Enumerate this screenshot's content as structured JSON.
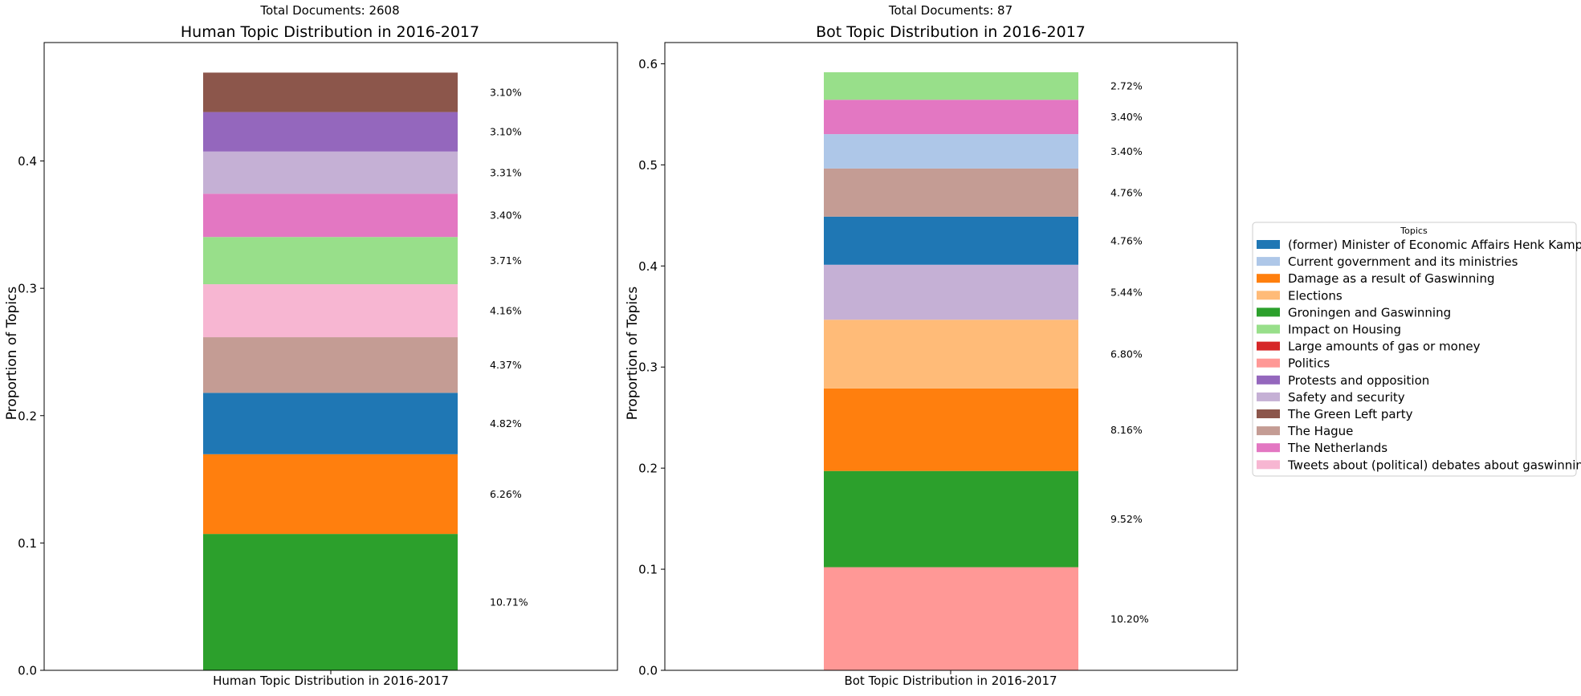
{
  "chart_data": [
    {
      "type": "bar",
      "stacked": true,
      "subtitle": "Total Documents: 2608",
      "title": "Human Topic Distribution in 2016-2017",
      "xlabel": "",
      "ylabel": "Proportion of Topics",
      "categories": [
        "Human Topic Distribution in 2016-2017"
      ],
      "ylim": [
        0,
        0.493
      ],
      "yticks": [
        "0.0",
        "0.1",
        "0.2",
        "0.3",
        "0.4"
      ],
      "yticks_values": [
        0,
        0.1,
        0.2,
        0.3,
        0.4
      ],
      "series": [
        {
          "name": "Groningen and Gaswinning",
          "value": 0.1071,
          "label": "10.71%"
        },
        {
          "name": "Damage as a result of Gaswinning",
          "value": 0.0626,
          "label": "6.26%"
        },
        {
          "name": "(former) Minister of Economic Affairs Henk Kamp",
          "value": 0.0482,
          "label": "4.82%"
        },
        {
          "name": "The Hague",
          "value": 0.0437,
          "label": "4.37%"
        },
        {
          "name": "Tweets about (political) debates about gaswinning",
          "value": 0.0416,
          "label": "4.16%"
        },
        {
          "name": "Impact on Housing",
          "value": 0.0371,
          "label": "3.71%"
        },
        {
          "name": "The Netherlands",
          "value": 0.034,
          "label": "3.40%"
        },
        {
          "name": "Safety and security",
          "value": 0.0331,
          "label": "3.31%"
        },
        {
          "name": "Protests and opposition",
          "value": 0.031,
          "label": "3.10%"
        },
        {
          "name": "The Green Left party",
          "value": 0.031,
          "label": "3.10%"
        }
      ]
    },
    {
      "type": "bar",
      "stacked": true,
      "subtitle": "Total Documents: 87",
      "title": "Bot Topic Distribution in 2016-2017",
      "xlabel": "",
      "ylabel": "Proportion of Topics",
      "categories": [
        "Bot Topic Distribution in 2016-2017"
      ],
      "ylim": [
        0,
        0.621
      ],
      "yticks": [
        "0.0",
        "0.1",
        "0.2",
        "0.3",
        "0.4",
        "0.5",
        "0.6"
      ],
      "yticks_values": [
        0,
        0.1,
        0.2,
        0.3,
        0.4,
        0.5,
        0.6
      ],
      "series": [
        {
          "name": "Politics",
          "value": 0.102,
          "label": "10.20%"
        },
        {
          "name": "Groningen and Gaswinning",
          "value": 0.0952,
          "label": "9.52%"
        },
        {
          "name": "Damage as a result of Gaswinning",
          "value": 0.0816,
          "label": "8.16%"
        },
        {
          "name": "Elections",
          "value": 0.068,
          "label": "6.80%"
        },
        {
          "name": "Safety and security",
          "value": 0.0544,
          "label": "5.44%"
        },
        {
          "name": "(former) Minister of Economic Affairs Henk Kamp",
          "value": 0.0476,
          "label": "4.76%"
        },
        {
          "name": "The Hague",
          "value": 0.0476,
          "label": "4.76%"
        },
        {
          "name": "Current government and its ministries",
          "value": 0.034,
          "label": "3.40%"
        },
        {
          "name": "The Netherlands",
          "value": 0.034,
          "label": "3.40%"
        },
        {
          "name": "Impact on Housing",
          "value": 0.0272,
          "label": "2.72%"
        }
      ]
    }
  ],
  "legend": {
    "title": "Topics",
    "placement": "right",
    "items": [
      {
        "name": "(former) Minister of Economic Affairs Henk Kamp",
        "color": "#1f77b4"
      },
      {
        "name": "Current government and its ministries",
        "color": "#aec7e8"
      },
      {
        "name": "Damage as a result of Gaswinning",
        "color": "#ff7f0e"
      },
      {
        "name": "Elections",
        "color": "#ffbb78"
      },
      {
        "name": "Groningen and Gaswinning",
        "color": "#2ca02c"
      },
      {
        "name": "Impact on Housing",
        "color": "#98df8a"
      },
      {
        "name": "Large amounts of gas or money",
        "color": "#d62728"
      },
      {
        "name": "Politics",
        "color": "#ff9896"
      },
      {
        "name": "Protests and opposition",
        "color": "#9467bd"
      },
      {
        "name": "Safety and security",
        "color": "#c5b0d5"
      },
      {
        "name": "The Green Left party",
        "color": "#8c564b"
      },
      {
        "name": "The Hague",
        "color": "#c49c94"
      },
      {
        "name": "The Netherlands",
        "color": "#e377c2"
      },
      {
        "name": "Tweets about (political) debates about gaswinning",
        "color": "#f7b6d2"
      }
    ]
  }
}
